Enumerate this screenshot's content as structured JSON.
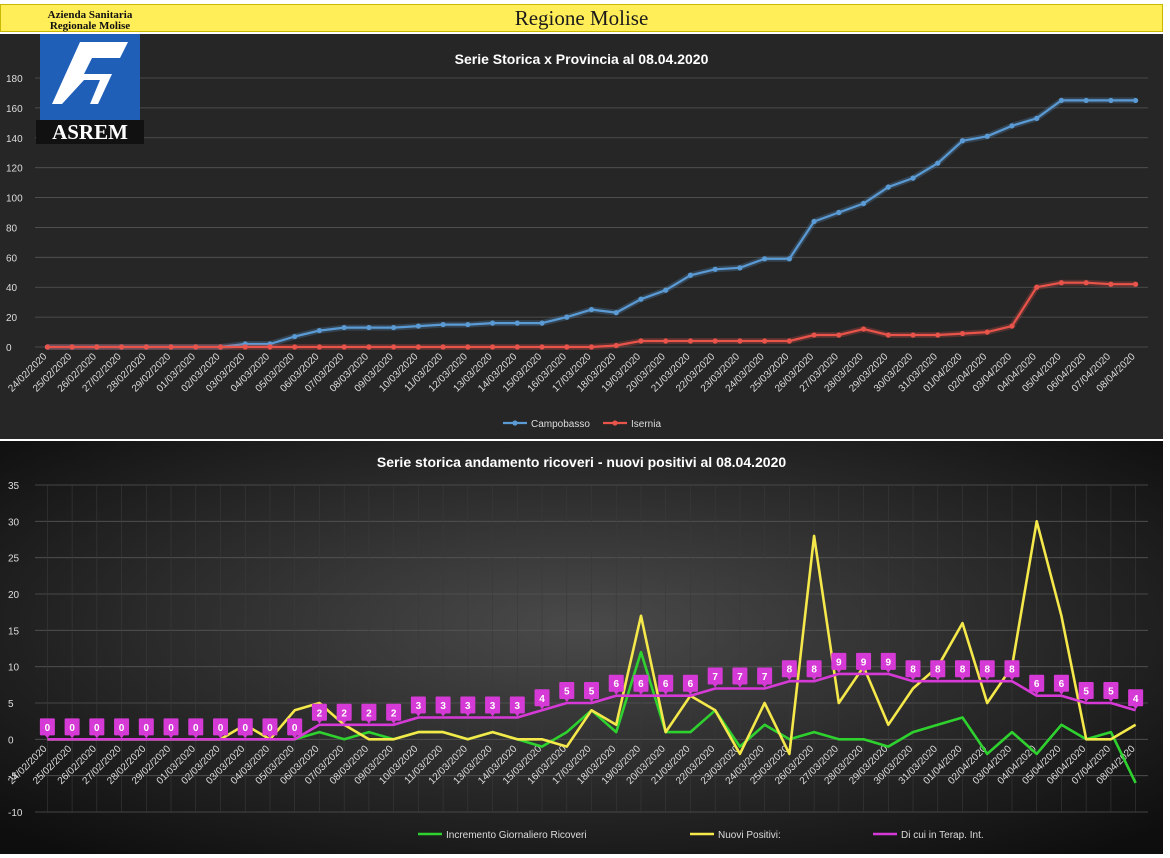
{
  "banner": {
    "title": "Regione Molise"
  },
  "logo": {
    "line1": "Azienda Sanitaria",
    "line2": "Regionale Molise",
    "brand": "ASREM"
  },
  "colors": {
    "campobasso": "#5b9bd5",
    "isernia": "#e8534a",
    "ricoveri": "#2fd12f",
    "positivi": "#f5e84a",
    "terapia": "#d63ad6"
  },
  "charts": [
    {
      "chart_data": {
        "type": "line",
        "title": "Serie Storica x Provincia al 08.04.2020",
        "ylim": [
          0,
          180
        ],
        "yticks": [
          0,
          20,
          40,
          60,
          80,
          100,
          120,
          140,
          160,
          180
        ],
        "grid": true,
        "legend": "bottom",
        "categories": [
          "24/02/2020",
          "25/02/2020",
          "26/02/2020",
          "27/02/2020",
          "28/02/2020",
          "29/02/2020",
          "01/03/2020",
          "02/03/2020",
          "03/03/2020",
          "04/03/2020",
          "05/03/2020",
          "06/03/2020",
          "07/03/2020",
          "08/03/2020",
          "09/03/2020",
          "10/03/2020",
          "11/03/2020",
          "12/03/2020",
          "13/03/2020",
          "14/03/2020",
          "15/03/2020",
          "16/03/2020",
          "17/03/2020",
          "18/03/2020",
          "19/03/2020",
          "20/03/2020",
          "21/03/2020",
          "22/03/2020",
          "23/03/2020",
          "24/03/2020",
          "25/03/2020",
          "26/03/2020",
          "27/03/2020",
          "28/03/2020",
          "29/03/2020",
          "30/03/2020",
          "31/03/2020",
          "01/04/2020",
          "02/04/2020",
          "03/04/2020",
          "04/04/2020",
          "05/04/2020",
          "06/04/2020",
          "07/04/2020",
          "08/04/2020"
        ],
        "series": [
          {
            "name": "Campobasso",
            "values": [
              0,
              0,
              0,
              0,
              0,
              0,
              0,
              0,
              2,
              2,
              7,
              11,
              13,
              13,
              13,
              14,
              15,
              15,
              16,
              16,
              16,
              20,
              25,
              23,
              32,
              38,
              48,
              52,
              53,
              59,
              59,
              84,
              90,
              96,
              107,
              113,
              123,
              138,
              141,
              148,
              153,
              165,
              165,
              165,
              165
            ]
          },
          {
            "name": "Isernia",
            "values": [
              0,
              0,
              0,
              0,
              0,
              0,
              0,
              0,
              0,
              0,
              0,
              0,
              0,
              0,
              0,
              0,
              0,
              0,
              0,
              0,
              0,
              0,
              0,
              1,
              4,
              4,
              4,
              4,
              4,
              4,
              4,
              8,
              8,
              12,
              8,
              8,
              8,
              9,
              10,
              14,
              40,
              43,
              43,
              42,
              42
            ]
          }
        ]
      }
    },
    {
      "chart_data": {
        "type": "line",
        "title": "Serie storica andamento ricoveri - nuovi positivi al 08.04.2020",
        "ylim": [
          -10,
          35
        ],
        "yticks": [
          -10,
          -5,
          0,
          5,
          10,
          15,
          20,
          25,
          30,
          35
        ],
        "grid": true,
        "legend": "bottom",
        "categories": [
          "24/02/2020",
          "25/02/2020",
          "26/02/2020",
          "27/02/2020",
          "28/02/2020",
          "29/02/2020",
          "01/03/2020",
          "02/03/2020",
          "03/03/2020",
          "04/03/2020",
          "05/03/2020",
          "06/03/2020",
          "07/03/2020",
          "08/03/2020",
          "09/03/2020",
          "10/03/2020",
          "11/03/2020",
          "12/03/2020",
          "13/03/2020",
          "14/03/2020",
          "15/03/2020",
          "16/03/2020",
          "17/03/2020",
          "18/03/2020",
          "19/03/2020",
          "20/03/2020",
          "21/03/2020",
          "22/03/2020",
          "23/03/2020",
          "24/03/2020",
          "25/03/2020",
          "26/03/2020",
          "27/03/2020",
          "28/03/2020",
          "29/03/2020",
          "30/03/2020",
          "31/03/2020",
          "01/04/2020",
          "02/04/2020",
          "03/04/2020",
          "04/04/2020",
          "05/04/2020",
          "06/04/2020",
          "07/04/2020",
          "08/04/2020"
        ],
        "series": [
          {
            "name": "Incremento Giornaliero Ricoveri",
            "values": [
              0,
              0,
              0,
              0,
              0,
              0,
              0,
              0,
              0,
              0,
              0,
              1,
              0,
              1,
              0,
              1,
              1,
              0,
              1,
              0,
              -1,
              1,
              4,
              1,
              12,
              1,
              1,
              4,
              -1,
              2,
              0,
              1,
              0,
              0,
              -1,
              1,
              2,
              3,
              -2,
              1,
              -2,
              2,
              0,
              1,
              -6
            ]
          },
          {
            "name": "Nuovi Positivi:",
            "values": [
              0,
              0,
              0,
              0,
              0,
              0,
              0,
              0,
              2,
              0,
              4,
              5,
              2,
              0,
              0,
              1,
              1,
              0,
              1,
              0,
              0,
              -1,
              4,
              2,
              17,
              1,
              6,
              4,
              -2,
              5,
              -2,
              28,
              5,
              10,
              2,
              7,
              10,
              16,
              5,
              10,
              30,
              17,
              0,
              0,
              2
            ]
          },
          {
            "name": "Di cui in Terap. Int.",
            "values": [
              0,
              0,
              0,
              0,
              0,
              0,
              0,
              0,
              0,
              0,
              0,
              2,
              2,
              2,
              2,
              3,
              3,
              3,
              3,
              3,
              4,
              5,
              5,
              6,
              6,
              6,
              6,
              7,
              7,
              7,
              8,
              8,
              9,
              9,
              9,
              8,
              8,
              8,
              8,
              8,
              6,
              6,
              5,
              5,
              4
            ]
          }
        ]
      }
    }
  ]
}
